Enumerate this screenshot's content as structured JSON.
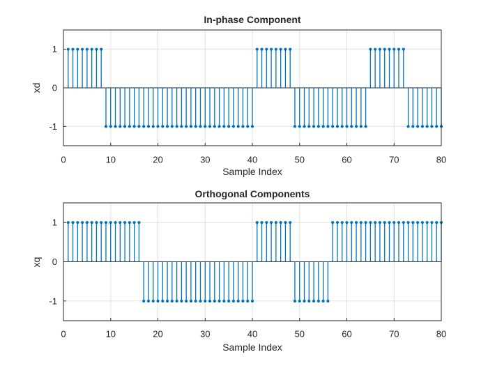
{
  "figure": {
    "background": "#ffffff"
  },
  "colors": {
    "stem": "#0072BD",
    "axis": "#262626",
    "grid": "#e0e0e0",
    "tick_label": "#262626"
  },
  "chart_data": [
    {
      "type": "stem",
      "title": "In-phase Component",
      "xlabel": "Sample Index",
      "ylabel": "xd",
      "xlim": [
        0,
        80
      ],
      "ylim": [
        -1.5,
        1.5
      ],
      "xticks": [
        0,
        10,
        20,
        30,
        40,
        50,
        60,
        70,
        80
      ],
      "yticks": [
        -1,
        0,
        1
      ],
      "grid": true,
      "x_start": 1,
      "values": [
        1,
        1,
        1,
        1,
        1,
        1,
        1,
        1,
        -1,
        -1,
        -1,
        -1,
        -1,
        -1,
        -1,
        -1,
        -1,
        -1,
        -1,
        -1,
        -1,
        -1,
        -1,
        -1,
        -1,
        -1,
        -1,
        -1,
        -1,
        -1,
        -1,
        -1,
        -1,
        -1,
        -1,
        -1,
        -1,
        -1,
        -1,
        -1,
        1,
        1,
        1,
        1,
        1,
        1,
        1,
        1,
        -1,
        -1,
        -1,
        -1,
        -1,
        -1,
        -1,
        -1,
        -1,
        -1,
        -1,
        -1,
        -1,
        -1,
        -1,
        -1,
        1,
        1,
        1,
        1,
        1,
        1,
        1,
        1,
        -1,
        -1,
        -1,
        -1,
        -1,
        -1,
        -1,
        -1
      ]
    },
    {
      "type": "stem",
      "title": "Orthogonal Components",
      "xlabel": "Sample Index",
      "ylabel": "xq",
      "xlim": [
        0,
        80
      ],
      "ylim": [
        -1.5,
        1.5
      ],
      "xticks": [
        0,
        10,
        20,
        30,
        40,
        50,
        60,
        70,
        80
      ],
      "yticks": [
        -1,
        0,
        1
      ],
      "grid": true,
      "x_start": 1,
      "values": [
        1,
        1,
        1,
        1,
        1,
        1,
        1,
        1,
        1,
        1,
        1,
        1,
        1,
        1,
        1,
        1,
        -1,
        -1,
        -1,
        -1,
        -1,
        -1,
        -1,
        -1,
        -1,
        -1,
        -1,
        -1,
        -1,
        -1,
        -1,
        -1,
        -1,
        -1,
        -1,
        -1,
        -1,
        -1,
        -1,
        -1,
        1,
        1,
        1,
        1,
        1,
        1,
        1,
        1,
        -1,
        -1,
        -1,
        -1,
        -1,
        -1,
        -1,
        -1,
        1,
        1,
        1,
        1,
        1,
        1,
        1,
        1,
        1,
        1,
        1,
        1,
        1,
        1,
        1,
        1,
        1,
        1,
        1,
        1,
        1,
        1,
        1,
        1
      ]
    }
  ]
}
